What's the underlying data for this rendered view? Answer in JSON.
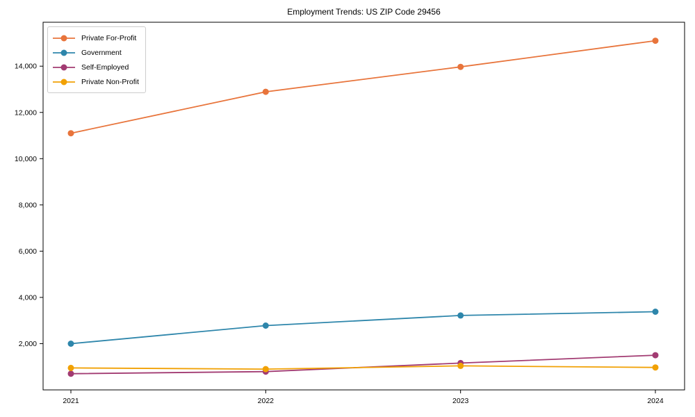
{
  "chart_data": {
    "type": "line",
    "title": "Employment Trends: US ZIP Code 29456",
    "categories": [
      "2021",
      "2022",
      "2023",
      "2024"
    ],
    "series": [
      {
        "name": "Private For-Profit",
        "color": "#e8743b",
        "values": [
          11100,
          12890,
          13970,
          15100
        ]
      },
      {
        "name": "Government",
        "color": "#2e86ab",
        "values": [
          2000,
          2780,
          3220,
          3380
        ]
      },
      {
        "name": "Self-Employed",
        "color": "#a23b72",
        "values": [
          700,
          790,
          1160,
          1500
        ]
      },
      {
        "name": "Private Non-Profit",
        "color": "#f1a104",
        "values": [
          950,
          900,
          1040,
          970
        ]
      }
    ],
    "xlabel": "",
    "ylabel": "",
    "ylim": [
      0,
      15900
    ],
    "yticks": [
      2000,
      4000,
      6000,
      8000,
      10000,
      12000,
      14000
    ],
    "ytick_labels": [
      "2,000",
      "4,000",
      "6,000",
      "8,000",
      "10,000",
      "12,000",
      "14,000"
    ],
    "grid": false,
    "legend_position": "upper-left"
  }
}
